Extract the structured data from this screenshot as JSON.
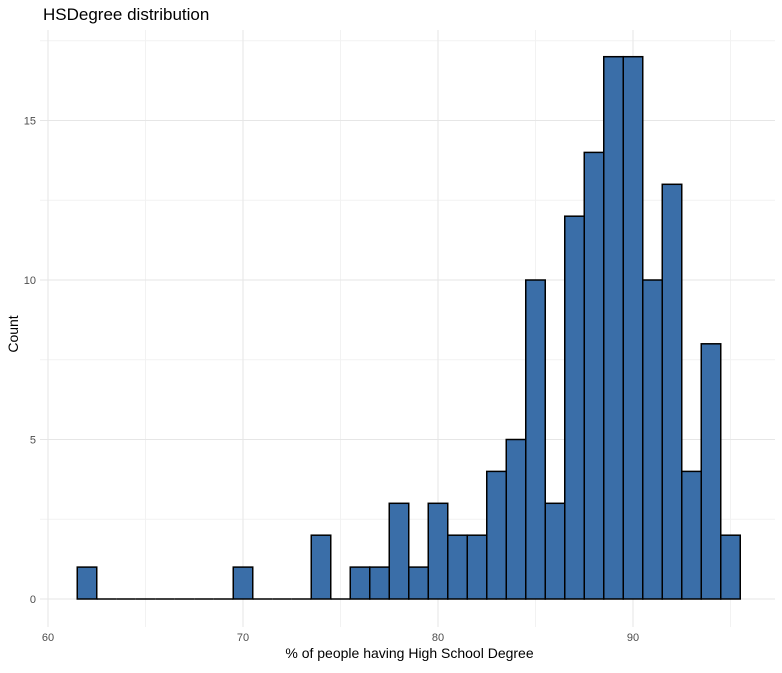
{
  "chart_data": {
    "type": "bar",
    "title": "HSDegree distribution",
    "xlabel": "% of people having High School Degree",
    "ylabel": "Count",
    "xlim": [
      60,
      96
    ],
    "ylim": [
      0,
      17
    ],
    "x_ticks": [
      60,
      70,
      80,
      90
    ],
    "y_ticks": [
      0,
      5,
      10,
      15
    ],
    "grid": true,
    "legend": "none",
    "fill_color": "#3a6ea8",
    "edge_color": "#000000",
    "bins": [
      {
        "x0": 61.5,
        "x1": 62.5,
        "count": 1
      },
      {
        "x0": 62.5,
        "x1": 63.5,
        "count": 0
      },
      {
        "x0": 63.5,
        "x1": 64.5,
        "count": 0
      },
      {
        "x0": 64.5,
        "x1": 65.5,
        "count": 0
      },
      {
        "x0": 65.5,
        "x1": 66.5,
        "count": 0
      },
      {
        "x0": 66.5,
        "x1": 67.5,
        "count": 0
      },
      {
        "x0": 67.5,
        "x1": 68.5,
        "count": 0
      },
      {
        "x0": 68.5,
        "x1": 69.5,
        "count": 0
      },
      {
        "x0": 69.5,
        "x1": 70.5,
        "count": 1
      },
      {
        "x0": 70.5,
        "x1": 71.5,
        "count": 0
      },
      {
        "x0": 71.5,
        "x1": 72.5,
        "count": 0
      },
      {
        "x0": 72.5,
        "x1": 73.5,
        "count": 0
      },
      {
        "x0": 73.5,
        "x1": 74.5,
        "count": 2
      },
      {
        "x0": 74.5,
        "x1": 75.5,
        "count": 0
      },
      {
        "x0": 75.5,
        "x1": 76.5,
        "count": 1
      },
      {
        "x0": 76.5,
        "x1": 77.5,
        "count": 1
      },
      {
        "x0": 77.5,
        "x1": 78.5,
        "count": 3
      },
      {
        "x0": 78.5,
        "x1": 79.5,
        "count": 1
      },
      {
        "x0": 79.5,
        "x1": 80.5,
        "count": 3
      },
      {
        "x0": 80.5,
        "x1": 81.5,
        "count": 2
      },
      {
        "x0": 81.5,
        "x1": 82.5,
        "count": 2
      },
      {
        "x0": 82.5,
        "x1": 83.5,
        "count": 4
      },
      {
        "x0": 83.5,
        "x1": 84.5,
        "count": 5
      },
      {
        "x0": 84.5,
        "x1": 85.5,
        "count": 10
      },
      {
        "x0": 85.5,
        "x1": 86.5,
        "count": 3
      },
      {
        "x0": 86.5,
        "x1": 87.5,
        "count": 12
      },
      {
        "x0": 87.5,
        "x1": 88.5,
        "count": 14
      },
      {
        "x0": 88.5,
        "x1": 89.5,
        "count": 17
      },
      {
        "x0": 89.5,
        "x1": 90.5,
        "count": 17
      },
      {
        "x0": 90.5,
        "x1": 91.5,
        "count": 10
      },
      {
        "x0": 91.5,
        "x1": 92.5,
        "count": 13
      },
      {
        "x0": 92.5,
        "x1": 93.5,
        "count": 4
      },
      {
        "x0": 93.5,
        "x1": 94.5,
        "count": 8
      },
      {
        "x0": 94.5,
        "x1": 95.5,
        "count": 2
      }
    ]
  }
}
